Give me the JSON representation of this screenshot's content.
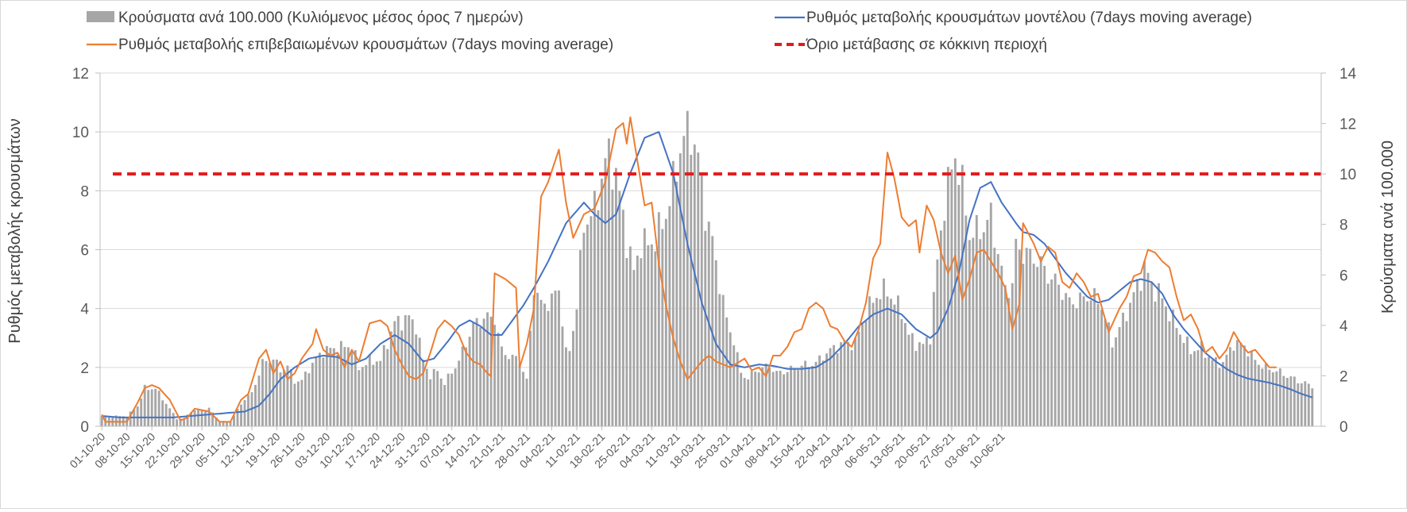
{
  "chart_data": {
    "type": "bar+line",
    "legend": {
      "placement": "top",
      "entries": [
        {
          "key": "bars",
          "label": "Κρούσματα ανά 100.000 (Κυλιόμενος μέσος όρος 7 ημερών)",
          "color": "#a6a6a6",
          "symbol": "bar"
        },
        {
          "key": "model",
          "label": "Ρυθμός μεταβολής κρουσμάτων μοντέλου (7days moving average)",
          "color": "#4472c4",
          "symbol": "line"
        },
        {
          "key": "confirmed",
          "label": "Ρυθμός μεταβολής επιβεβαιωμένων κρουσμάτων (7days moving average)",
          "color": "#ed7d31",
          "symbol": "line"
        },
        {
          "key": "threshold",
          "label": "Όριο μετάβασης σε κόκκινη περιοχή",
          "color": "#e31a1c",
          "symbol": "dashed-line"
        }
      ]
    },
    "y_left": {
      "label": "Ρυθμός μεταβολής κρουσμάτων",
      "min": 0,
      "max": 12,
      "ticks": [
        "0",
        "2",
        "4",
        "6",
        "8",
        "10",
        "12"
      ]
    },
    "y_right": {
      "label": "Κρούσματα ανά 100.000",
      "min": 0,
      "max": 14,
      "ticks": [
        "0",
        "2",
        "4",
        "6",
        "8",
        "10",
        "12",
        "14"
      ]
    },
    "x": {
      "start_label": "01-10-20",
      "count": 259,
      "tick_labels": [
        "01-10-20",
        "08-10-20",
        "15-10-20",
        "22-10-20",
        "29-10-20",
        "05-11-20",
        "12-11-20",
        "19-11-20",
        "26-11-20",
        "03-12-20",
        "10-12-20",
        "17-12-20",
        "24-12-20",
        "31-12-20",
        "07-01-21",
        "14-01-21",
        "21-01-21",
        "28-01-21",
        "04-02-21",
        "11-02-21",
        "18-02-21",
        "25-02-21",
        "04-03-21",
        "11-03-21",
        "18-03-21",
        "25-03-21",
        "01-04-21",
        "08-04-21",
        "15-04-21",
        "22-04-21",
        "29-04-21",
        "06-05-21",
        "13-05-21",
        "20-05-21",
        "27-05-21",
        "03-06-21",
        "10-06-21"
      ]
    },
    "grid": "horizontal",
    "threshold": {
      "value": 10,
      "axis": "right"
    },
    "bars_per100k_keypoints": [
      [
        0,
        0.4
      ],
      [
        7,
        0.4
      ],
      [
        10,
        0.8
      ],
      [
        12,
        1.5
      ],
      [
        15,
        1.5
      ],
      [
        18,
        0.9
      ],
      [
        21,
        0.3
      ],
      [
        23,
        0.3
      ],
      [
        25,
        0.6
      ],
      [
        30,
        0.7
      ],
      [
        33,
        0.2
      ],
      [
        36,
        0.2
      ],
      [
        40,
        1.1
      ],
      [
        42,
        1.3
      ],
      [
        45,
        2.5
      ],
      [
        48,
        2.7
      ],
      [
        50,
        2.2
      ],
      [
        52,
        2.4
      ],
      [
        54,
        1.8
      ],
      [
        56,
        1.8
      ],
      [
        58,
        2.3
      ],
      [
        62,
        3.0
      ],
      [
        66,
        3.1
      ],
      [
        70,
        3.2
      ],
      [
        72,
        2.3
      ],
      [
        75,
        2.6
      ],
      [
        78,
        2.6
      ],
      [
        82,
        4.1
      ],
      [
        86,
        4.3
      ],
      [
        88,
        4.0
      ],
      [
        90,
        2.6
      ],
      [
        92,
        2.0
      ],
      [
        94,
        2.2
      ],
      [
        96,
        1.7
      ],
      [
        100,
        2.6
      ],
      [
        104,
        4.0
      ],
      [
        107,
        4.3
      ],
      [
        110,
        4.3
      ],
      [
        112,
        3.0
      ],
      [
        114,
        2.8
      ],
      [
        117,
        2.6
      ],
      [
        119,
        1.8
      ],
      [
        121,
        5.6
      ],
      [
        123,
        4.8
      ],
      [
        126,
        5.0
      ],
      [
        128,
        5.5
      ],
      [
        130,
        2.9
      ],
      [
        131,
        3.0
      ],
      [
        133,
        4.8
      ],
      [
        135,
        8.0
      ],
      [
        138,
        8.6
      ],
      [
        141,
        10.5
      ],
      [
        142,
        10.7
      ],
      [
        144,
        10.0
      ],
      [
        147,
        7.4
      ],
      [
        149,
        6.1
      ],
      [
        151,
        7.3
      ],
      [
        153,
        7.2
      ],
      [
        155,
        7.4
      ],
      [
        158,
        8.4
      ],
      [
        160,
        9.6
      ],
      [
        162,
        11.0
      ],
      [
        163,
        11.5
      ],
      [
        165,
        11.7
      ],
      [
        167,
        10.6
      ],
      [
        169,
        8.5
      ],
      [
        171,
        7.3
      ],
      [
        173,
        5.7
      ],
      [
        175,
        4.2
      ],
      [
        177,
        3.4
      ],
      [
        179,
        2.1
      ],
      [
        181,
        1.9
      ],
      [
        183,
        2.2
      ],
      [
        187,
        2.4
      ],
      [
        189,
        2.1
      ],
      [
        192,
        2.2
      ],
      [
        196,
        2.4
      ],
      [
        200,
        2.5
      ],
      [
        202,
        2.8
      ],
      [
        205,
        3.1
      ],
      [
        208,
        3.3
      ],
      [
        211,
        3.3
      ],
      [
        214,
        4.5
      ],
      [
        217,
        5.2
      ],
      [
        220,
        5.4
      ],
      [
        222,
        4.9
      ],
      [
        224,
        4.6
      ],
      [
        226,
        3.6
      ],
      [
        228,
        3.3
      ],
      [
        230,
        3.2
      ],
      [
        232,
        3.6
      ],
      [
        234,
        6.5
      ],
      [
        236,
        8.9
      ],
      [
        239,
        10.8
      ],
      [
        241,
        9.5
      ],
      [
        243,
        7.6
      ],
      [
        245,
        7.7
      ],
      [
        247,
        7.9
      ],
      [
        249,
        8.3
      ],
      [
        251,
        6.9
      ],
      [
        253,
        5.4
      ],
      [
        255,
        5.6
      ],
      [
        256,
        7.1
      ]
    ],
    "confirmed_rate_keypoints": [
      [
        0,
        0.4
      ],
      [
        1,
        0.15
      ],
      [
        4,
        0.15
      ],
      [
        7,
        0.15
      ],
      [
        10,
        0.8
      ],
      [
        12,
        1.3
      ],
      [
        14,
        1.4
      ],
      [
        16,
        1.3
      ],
      [
        19,
        0.9
      ],
      [
        22,
        0.2
      ],
      [
        24,
        0.3
      ],
      [
        26,
        0.6
      ],
      [
        30,
        0.5
      ],
      [
        33,
        0.15
      ],
      [
        36,
        0.15
      ],
      [
        39,
        0.9
      ],
      [
        41,
        1.1
      ],
      [
        44,
        2.3
      ],
      [
        46,
        2.6
      ],
      [
        48,
        1.8
      ],
      [
        50,
        2.2
      ],
      [
        52,
        1.6
      ],
      [
        54,
        1.8
      ],
      [
        56,
        2.3
      ],
      [
        59,
        2.8
      ],
      [
        60,
        3.3
      ],
      [
        62,
        2.6
      ],
      [
        64,
        2.4
      ],
      [
        66,
        2.5
      ],
      [
        68,
        2.0
      ],
      [
        70,
        2.6
      ],
      [
        72,
        2.2
      ],
      [
        75,
        3.5
      ],
      [
        78,
        3.6
      ],
      [
        80,
        3.4
      ],
      [
        82,
        2.6
      ],
      [
        84,
        2.1
      ],
      [
        86,
        1.7
      ],
      [
        88,
        1.6
      ],
      [
        90,
        1.8
      ],
      [
        92,
        2.5
      ],
      [
        94,
        3.3
      ],
      [
        96,
        3.6
      ],
      [
        98,
        3.4
      ],
      [
        100,
        3.1
      ],
      [
        102,
        2.5
      ],
      [
        104,
        2.2
      ],
      [
        106,
        2.1
      ],
      [
        108,
        1.8
      ],
      [
        109,
        1.7
      ],
      [
        110,
        5.2
      ],
      [
        113,
        5.0
      ],
      [
        116,
        4.7
      ],
      [
        117,
        2.0
      ],
      [
        119,
        2.8
      ],
      [
        121,
        4.0
      ],
      [
        123,
        7.8
      ],
      [
        125,
        8.3
      ],
      [
        128,
        9.4
      ],
      [
        130,
        7.6
      ],
      [
        132,
        6.4
      ],
      [
        135,
        7.2
      ],
      [
        138,
        7.4
      ],
      [
        141,
        8.3
      ],
      [
        144,
        10.1
      ],
      [
        146,
        10.3
      ],
      [
        147,
        9.6
      ],
      [
        148,
        10.5
      ],
      [
        150,
        9.0
      ],
      [
        152,
        7.5
      ],
      [
        154,
        7.6
      ],
      [
        156,
        5.5
      ],
      [
        158,
        4.1
      ],
      [
        160,
        3.0
      ],
      [
        162,
        2.2
      ],
      [
        164,
        1.6
      ],
      [
        166,
        1.9
      ],
      [
        168,
        2.2
      ],
      [
        170,
        2.4
      ],
      [
        172,
        2.2
      ],
      [
        176,
        2.0
      ],
      [
        180,
        2.3
      ],
      [
        182,
        1.9
      ],
      [
        184,
        2.0
      ],
      [
        186,
        1.7
      ],
      [
        188,
        2.4
      ],
      [
        190,
        2.4
      ],
      [
        192,
        2.7
      ],
      [
        194,
        3.2
      ],
      [
        196,
        3.3
      ],
      [
        198,
        4.0
      ],
      [
        200,
        4.2
      ],
      [
        202,
        4.0
      ],
      [
        204,
        3.4
      ],
      [
        206,
        3.3
      ],
      [
        208,
        2.9
      ],
      [
        210,
        2.7
      ],
      [
        212,
        3.3
      ],
      [
        214,
        4.2
      ],
      [
        216,
        5.7
      ],
      [
        218,
        6.2
      ],
      [
        220,
        9.3
      ],
      [
        222,
        8.4
      ],
      [
        224,
        7.1
      ],
      [
        226,
        6.8
      ],
      [
        228,
        7.0
      ],
      [
        229,
        5.9
      ],
      [
        231,
        7.5
      ],
      [
        233,
        7.0
      ],
      [
        235,
        5.9
      ],
      [
        237,
        5.2
      ],
      [
        239,
        5.8
      ],
      [
        241,
        4.3
      ],
      [
        243,
        5.0
      ],
      [
        245,
        5.9
      ],
      [
        247,
        6.0
      ],
      [
        249,
        5.6
      ],
      [
        251,
        5.2
      ],
      [
        253,
        4.7
      ],
      [
        255,
        3.3
      ],
      [
        258,
        4.6
      ]
    ],
    "model_rate_keypoints": [
      [
        0,
        0.35
      ],
      [
        5,
        0.3
      ],
      [
        10,
        0.3
      ],
      [
        15,
        0.3
      ],
      [
        20,
        0.3
      ],
      [
        25,
        0.35
      ],
      [
        30,
        0.4
      ],
      [
        35,
        0.45
      ],
      [
        40,
        0.5
      ],
      [
        44,
        0.7
      ],
      [
        47,
        1.1
      ],
      [
        50,
        1.6
      ],
      [
        54,
        2.0
      ],
      [
        58,
        2.3
      ],
      [
        62,
        2.4
      ],
      [
        66,
        2.35
      ],
      [
        70,
        2.1
      ],
      [
        74,
        2.3
      ],
      [
        78,
        2.8
      ],
      [
        82,
        3.1
      ],
      [
        86,
        2.8
      ],
      [
        90,
        2.2
      ],
      [
        93,
        2.3
      ],
      [
        97,
        2.9
      ],
      [
        100,
        3.4
      ],
      [
        103,
        3.6
      ],
      [
        106,
        3.4
      ],
      [
        109,
        3.1
      ],
      [
        112,
        3.1
      ],
      [
        115,
        3.6
      ],
      [
        118,
        4.1
      ],
      [
        121,
        4.7
      ],
      [
        125,
        5.6
      ],
      [
        130,
        6.9
      ],
      [
        135,
        7.6
      ],
      [
        138,
        7.2
      ],
      [
        141,
        6.9
      ],
      [
        144,
        7.2
      ],
      [
        148,
        8.6
      ],
      [
        152,
        9.8
      ],
      [
        156,
        10.0
      ],
      [
        160,
        8.6
      ],
      [
        164,
        6.2
      ],
      [
        168,
        4.2
      ],
      [
        172,
        2.8
      ],
      [
        176,
        2.1
      ],
      [
        180,
        2.0
      ],
      [
        184,
        2.1
      ],
      [
        188,
        2.05
      ],
      [
        192,
        1.95
      ],
      [
        196,
        1.95
      ],
      [
        200,
        2.0
      ],
      [
        204,
        2.3
      ],
      [
        208,
        2.8
      ],
      [
        212,
        3.4
      ],
      [
        216,
        3.8
      ],
      [
        220,
        4.0
      ],
      [
        224,
        3.8
      ],
      [
        228,
        3.3
      ],
      [
        232,
        3.0
      ],
      [
        234,
        3.2
      ],
      [
        237,
        4.0
      ],
      [
        240,
        5.2
      ],
      [
        243,
        7.0
      ],
      [
        246,
        8.1
      ],
      [
        249,
        8.3
      ],
      [
        252,
        7.6
      ],
      [
        256,
        6.9
      ],
      [
        258,
        6.6
      ]
    ],
    "tail_bars_keypoints": [
      [
        256,
        7.1
      ],
      [
        258,
        6.9
      ],
      [
        262,
        6.6
      ],
      [
        265,
        6.0
      ],
      [
        268,
        5.6
      ],
      [
        271,
        4.9
      ],
      [
        274,
        5.0
      ],
      [
        277,
        5.2
      ],
      [
        280,
        4.8
      ],
      [
        283,
        3.3
      ],
      [
        286,
        4.2
      ],
      [
        289,
        5.2
      ],
      [
        292,
        6.3
      ],
      [
        294,
        5.6
      ],
      [
        296,
        5.3
      ],
      [
        299,
        4.5
      ],
      [
        302,
        3.7
      ],
      [
        305,
        3.0
      ],
      [
        308,
        3.1
      ],
      [
        311,
        2.6
      ],
      [
        314,
        2.5
      ],
      [
        317,
        3.3
      ],
      [
        320,
        3.2
      ],
      [
        323,
        2.6
      ],
      [
        326,
        2.3
      ],
      [
        329,
        2.2
      ],
      [
        332,
        2.0
      ],
      [
        335,
        1.8
      ],
      [
        337,
        1.7
      ],
      [
        339,
        1.6
      ]
    ],
    "tail_confirmed_keypoints": [
      [
        256,
        7.4
      ],
      [
        258,
        6.9
      ],
      [
        261,
        6.2
      ],
      [
        263,
        5.6
      ],
      [
        265,
        6.1
      ],
      [
        267,
        5.9
      ],
      [
        269,
        4.9
      ],
      [
        271,
        4.7
      ],
      [
        273,
        5.2
      ],
      [
        275,
        4.9
      ],
      [
        277,
        4.4
      ],
      [
        279,
        4.5
      ],
      [
        282,
        3.2
      ],
      [
        285,
        4.0
      ],
      [
        287,
        4.4
      ],
      [
        289,
        5.1
      ],
      [
        291,
        5.2
      ],
      [
        293,
        6.0
      ],
      [
        295,
        5.9
      ],
      [
        297,
        5.6
      ],
      [
        299,
        5.4
      ],
      [
        301,
        4.4
      ],
      [
        303,
        3.6
      ],
      [
        305,
        3.8
      ],
      [
        307,
        3.3
      ],
      [
        309,
        2.5
      ],
      [
        311,
        2.7
      ],
      [
        313,
        2.3
      ],
      [
        315,
        2.6
      ],
      [
        317,
        3.2
      ],
      [
        319,
        2.8
      ],
      [
        321,
        2.5
      ],
      [
        323,
        2.6
      ],
      [
        325,
        2.3
      ],
      [
        327,
        2.0
      ],
      [
        329,
        2.0
      ]
    ],
    "tail_model_keypoints": [
      [
        258,
        6.6
      ],
      [
        261,
        6.5
      ],
      [
        264,
        6.2
      ],
      [
        267,
        5.7
      ],
      [
        270,
        5.2
      ],
      [
        273,
        4.8
      ],
      [
        276,
        4.4
      ],
      [
        279,
        4.2
      ],
      [
        282,
        4.3
      ],
      [
        285,
        4.6
      ],
      [
        288,
        4.9
      ],
      [
        291,
        5.0
      ],
      [
        294,
        4.9
      ],
      [
        297,
        4.5
      ],
      [
        300,
        3.8
      ],
      [
        303,
        3.3
      ],
      [
        306,
        2.9
      ],
      [
        309,
        2.5
      ],
      [
        312,
        2.2
      ],
      [
        315,
        1.95
      ],
      [
        318,
        1.75
      ],
      [
        321,
        1.62
      ],
      [
        324,
        1.55
      ],
      [
        327,
        1.48
      ],
      [
        330,
        1.38
      ],
      [
        333,
        1.25
      ],
      [
        336,
        1.1
      ],
      [
        339,
        0.98
      ]
    ]
  }
}
